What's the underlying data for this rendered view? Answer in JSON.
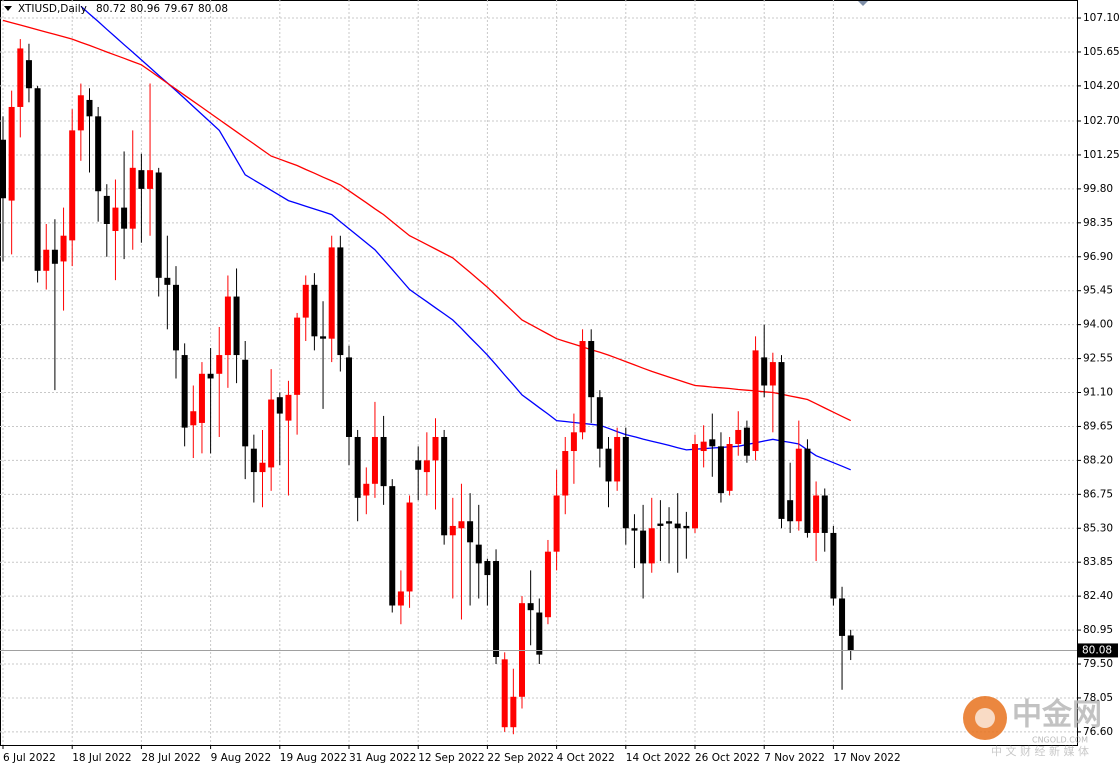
{
  "chart_data": {
    "type": "candlestick",
    "title": "XTIUSD,Daily",
    "categories": [
      "6 Jul 2022",
      null,
      null,
      null,
      null,
      null,
      null,
      null,
      "18 Jul 2022",
      null,
      null,
      null,
      null,
      null,
      null,
      null,
      "28 Jul 2022",
      null,
      null,
      null,
      null,
      null,
      null,
      null,
      "9 Aug 2022",
      null,
      null,
      null,
      null,
      null,
      null,
      null,
      "19 Aug 2022",
      null,
      null,
      null,
      null,
      null,
      null,
      null,
      "31 Aug 2022",
      null,
      null,
      null,
      null,
      null,
      null,
      null,
      "12 Sep 2022",
      null,
      null,
      null,
      null,
      null,
      null,
      null,
      "22 Sep 2022",
      null,
      null,
      null,
      null,
      null,
      null,
      null,
      "4 Oct 2022",
      null,
      null,
      null,
      null,
      null,
      null,
      null,
      "14 Oct 2022",
      null,
      null,
      null,
      null,
      null,
      null,
      null,
      "26 Oct 2022",
      null,
      null,
      null,
      null,
      null,
      null,
      null,
      "7 Nov 2022",
      null,
      null,
      null,
      null,
      null,
      null,
      null,
      "17 Nov 2022",
      null,
      null
    ],
    "open": [
      101.9,
      99.3,
      103.3,
      105.3,
      104.1,
      96.3,
      97.2,
      96.7,
      97.6,
      102.3,
      103.6,
      102.9,
      99.5,
      98.0,
      99.0,
      98.1,
      100.6,
      99.8,
      100.5,
      96.0,
      95.7,
      92.7,
      89.7,
      89.8,
      91.9,
      91.9,
      92.7,
      95.2,
      92.5,
      88.7,
      87.7,
      87.9,
      90.9,
      89.9,
      91.0,
      94.3,
      95.7,
      93.5,
      93.4,
      97.3,
      92.6,
      89.2,
      86.7,
      87.2,
      89.2,
      87.1,
      82.0,
      82.6,
      88.2,
      87.7,
      88.2,
      89.2,
      85.0,
      85.3,
      85.6,
      84.6,
      83.9,
      83.9,
      76.8,
      76.8,
      78.1,
      82.1,
      81.7,
      81.5,
      84.3,
      86.7,
      88.6,
      89.4,
      93.3,
      90.9,
      88.7,
      87.3,
      89.2,
      85.3,
      85.2,
      83.8,
      85.5,
      85.6,
      85.5,
      85.4,
      85.3,
      88.6,
      89.1,
      88.8,
      86.9,
      88.9,
      89.6,
      88.6,
      92.6,
      91.4,
      92.4,
      86.5,
      85.6,
      88.7,
      85.1,
      86.7,
      85.1,
      82.3,
      80.72
    ],
    "high": [
      102.9,
      104.0,
      106.2,
      106.0,
      104.2,
      98.3,
      98.5,
      99.0,
      103.2,
      104.3,
      104.1,
      103.3,
      100.0,
      100.2,
      101.4,
      102.3,
      101.3,
      104.3,
      100.7,
      97.8,
      96.5,
      93.2,
      91.4,
      92.4,
      93.0,
      93.9,
      96.1,
      96.4,
      93.3,
      89.3,
      89.5,
      92.1,
      91.1,
      91.6,
      94.5,
      96.1,
      96.2,
      95.0,
      97.8,
      97.8,
      93.1,
      89.5,
      87.9,
      90.7,
      90.1,
      87.4,
      83.5,
      86.7,
      88.8,
      89.4,
      90.0,
      89.5,
      86.6,
      87.2,
      86.8,
      86.3,
      84.0,
      84.4,
      80.0,
      79.3,
      82.4,
      83.5,
      82.3,
      84.8,
      87.8,
      89.2,
      90.2,
      93.8,
      93.8,
      91.2,
      89.2,
      89.6,
      89.6,
      85.9,
      86.3,
      86.6,
      86.5,
      86.2,
      86.8,
      86.0,
      89.3,
      89.7,
      90.2,
      89.4,
      89.2,
      90.3,
      89.9,
      93.5,
      94.0,
      92.8,
      92.7,
      88.1,
      89.9,
      89.1,
      87.3,
      87.0,
      85.4,
      82.8,
      80.96
    ],
    "low": [
      96.7,
      97.0,
      102.0,
      103.5,
      95.8,
      95.5,
      91.2,
      94.6,
      96.5,
      101.0,
      100.5,
      98.4,
      96.9,
      95.9,
      96.8,
      97.2,
      97.5,
      97.8,
      95.2,
      93.8,
      91.7,
      88.8,
      88.3,
      88.5,
      88.5,
      89.2,
      91.3,
      91.5,
      87.4,
      86.4,
      86.2,
      86.9,
      88.0,
      86.7,
      89.3,
      93.3,
      92.9,
      90.4,
      92.4,
      92.0,
      88.0,
      85.6,
      85.9,
      86.6,
      86.3,
      81.7,
      81.2,
      81.9,
      86.5,
      86.7,
      86.1,
      84.6,
      82.3,
      81.4,
      82.0,
      82.3,
      82.0,
      79.5,
      76.6,
      76.5,
      77.6,
      80.3,
      79.5,
      81.2,
      83.5,
      85.9,
      87.2,
      89.1,
      89.8,
      87.9,
      86.2,
      86.9,
      84.6,
      83.6,
      82.3,
      83.4,
      83.9,
      83.8,
      83.4,
      84.0,
      85.1,
      87.9,
      87.5,
      86.4,
      86.7,
      88.4,
      88.1,
      88.2,
      90.9,
      89.4,
      85.3,
      85.1,
      85.2,
      84.9,
      83.9,
      84.3,
      82.0,
      78.4,
      79.67
    ],
    "close": [
      99.4,
      103.3,
      105.8,
      104.1,
      96.3,
      97.2,
      96.6,
      97.8,
      102.3,
      103.8,
      102.9,
      99.7,
      98.3,
      99.0,
      98.1,
      100.7,
      99.8,
      100.6,
      96.0,
      95.7,
      92.9,
      89.6,
      90.3,
      91.9,
      91.7,
      92.7,
      95.2,
      92.7,
      88.8,
      87.7,
      88.1,
      90.8,
      90.2,
      91.0,
      94.3,
      95.7,
      93.5,
      93.4,
      97.3,
      92.7,
      89.2,
      86.6,
      87.2,
      89.2,
      87.1,
      82.0,
      82.6,
      86.4,
      87.8,
      88.2,
      89.2,
      85.0,
      85.4,
      85.6,
      84.7,
      83.8,
      83.3,
      79.8,
      79.7,
      78.1,
      82.1,
      81.8,
      79.9,
      84.3,
      86.7,
      88.6,
      89.4,
      93.3,
      90.9,
      88.7,
      87.3,
      89.2,
      85.3,
      85.2,
      83.8,
      85.3,
      85.4,
      85.5,
      85.3,
      85.3,
      88.9,
      89.0,
      88.8,
      86.8,
      88.9,
      89.5,
      88.4,
      92.9,
      91.4,
      92.4,
      85.7,
      85.6,
      88.7,
      85.1,
      86.7,
      85.1,
      82.3,
      80.7,
      80.08
    ],
    "up_color": "#ff0000",
    "down_color": "#000000",
    "lines": [
      {
        "color": "#0000ff",
        "values": [
          null,
          null,
          null,
          null,
          null,
          null,
          null,
          null,
          null,
          107.6,
          107.27,
          106.95,
          106.62,
          106.29,
          105.96,
          105.64,
          105.31,
          104.98,
          104.65,
          104.33,
          104.0,
          103.66,
          103.32,
          102.98,
          102.64,
          102.3,
          101.67,
          101.03,
          100.4,
          100.18,
          99.96,
          99.74,
          99.52,
          99.3,
          99.18,
          99.06,
          98.94,
          98.82,
          98.7,
          98.4,
          98.1,
          97.8,
          97.5,
          97.2,
          96.78,
          96.35,
          95.93,
          95.5,
          95.24,
          94.98,
          94.72,
          94.46,
          94.2,
          93.83,
          93.45,
          93.08,
          92.7,
          92.28,
          91.85,
          91.43,
          91.0,
          90.73,
          90.45,
          90.18,
          89.9,
          89.86,
          89.82,
          89.78,
          89.74,
          89.7,
          89.57,
          89.43,
          89.3,
          89.21,
          89.11,
          89.02,
          88.93,
          88.84,
          88.74,
          88.65,
          88.68,
          88.7,
          88.73,
          88.75,
          88.78,
          88.8,
          88.88,
          88.95,
          89.03,
          89.1,
          89.03,
          88.97,
          88.9,
          88.65,
          88.4,
          88.25,
          88.1,
          87.95,
          87.8
        ]
      },
      {
        "color": "#ff0000",
        "values": [
          107.0,
          106.9,
          106.8,
          106.7,
          106.6,
          106.5,
          106.4,
          106.3,
          106.2,
          106.06,
          105.93,
          105.79,
          105.65,
          105.51,
          105.38,
          105.24,
          105.1,
          104.84,
          104.58,
          104.32,
          104.06,
          103.8,
          103.54,
          103.28,
          103.02,
          102.76,
          102.5,
          102.24,
          101.98,
          101.72,
          101.46,
          101.2,
          101.07,
          100.93,
          100.8,
          100.63,
          100.47,
          100.3,
          100.14,
          99.97,
          99.72,
          99.46,
          99.21,
          98.95,
          98.7,
          98.4,
          98.1,
          97.8,
          97.61,
          97.42,
          97.23,
          97.04,
          96.85,
          96.54,
          96.23,
          95.91,
          95.6,
          95.25,
          94.9,
          94.55,
          94.2,
          94.0,
          93.8,
          93.6,
          93.4,
          93.28,
          93.17,
          93.05,
          92.93,
          92.82,
          92.7,
          92.56,
          92.42,
          92.28,
          92.14,
          92.0,
          91.88,
          91.76,
          91.64,
          91.52,
          91.4,
          91.37,
          91.33,
          91.3,
          91.27,
          91.23,
          91.2,
          91.17,
          91.13,
          91.1,
          91.03,
          90.95,
          90.88,
          90.8,
          90.62,
          90.44,
          90.26,
          90.08,
          89.9
        ]
      }
    ],
    "ylim": [
      76.04,
      107.87
    ],
    "yticks": [
      {
        "value": 107.1,
        "label": "107.10"
      },
      105.65,
      {
        "value": 104.2,
        "label": "104.20"
      },
      {
        "value": 102.7,
        "label": "102.70"
      },
      101.25,
      {
        "value": 99.8,
        "label": "99.80"
      },
      98.35,
      {
        "value": 96.9,
        "label": "96.90"
      },
      95.45,
      {
        "value": 94,
        "label": "94.00"
      },
      92.55,
      {
        "value": 91.1,
        "label": "91.10"
      },
      89.65,
      {
        "value": 88.2,
        "label": "88.20"
      },
      86.75,
      {
        "value": 85.3,
        "label": "85.30"
      },
      83.85,
      {
        "value": 82.4,
        "label": "82.40"
      },
      80.95,
      {
        "value": 79.5,
        "label": "79.50"
      },
      78.05,
      {
        "value": 76.6,
        "label": "76.60"
      }
    ],
    "grid": true,
    "watermark": {
      "brand": "中金网",
      "site": "CNGOLD.COM",
      "slogan": "中 文 财 经 新 媒 体"
    }
  }
}
